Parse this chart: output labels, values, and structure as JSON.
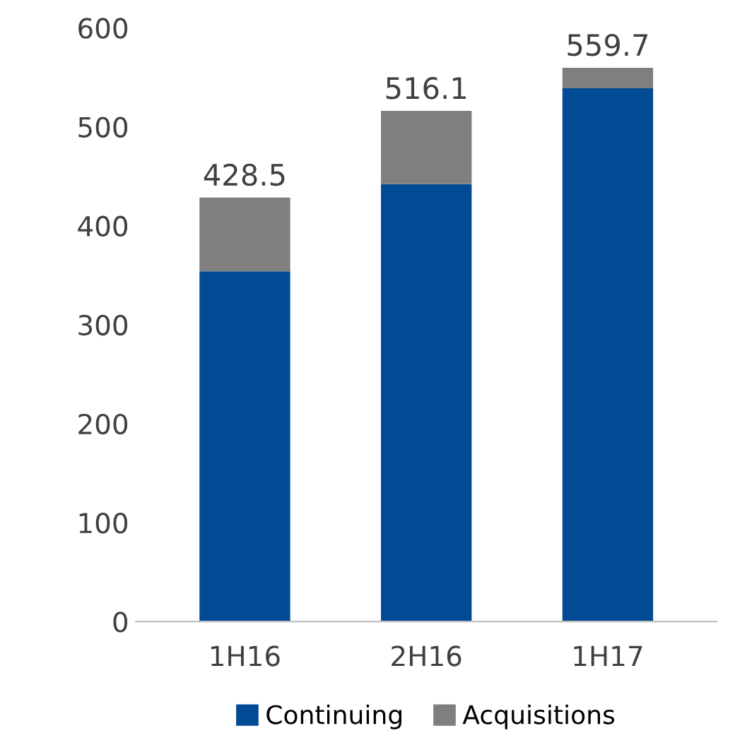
{
  "chart_data": {
    "type": "bar",
    "stacked": true,
    "categories": [
      "1H16",
      "2H16",
      "1H17"
    ],
    "series": [
      {
        "name": "Continuing",
        "color": "#004b93",
        "values": [
          354,
          442,
          539
        ]
      },
      {
        "name": "Acquisitions",
        "color": "#7f7f7f",
        "values": [
          74.5,
          74.1,
          20.7
        ]
      }
    ],
    "totals": [
      "428.5",
      "516.1",
      "559.7"
    ],
    "ylim": [
      0,
      600
    ],
    "yticks": [
      0,
      100,
      200,
      300,
      400,
      500,
      600
    ],
    "grid": false,
    "legend": "bottom"
  }
}
